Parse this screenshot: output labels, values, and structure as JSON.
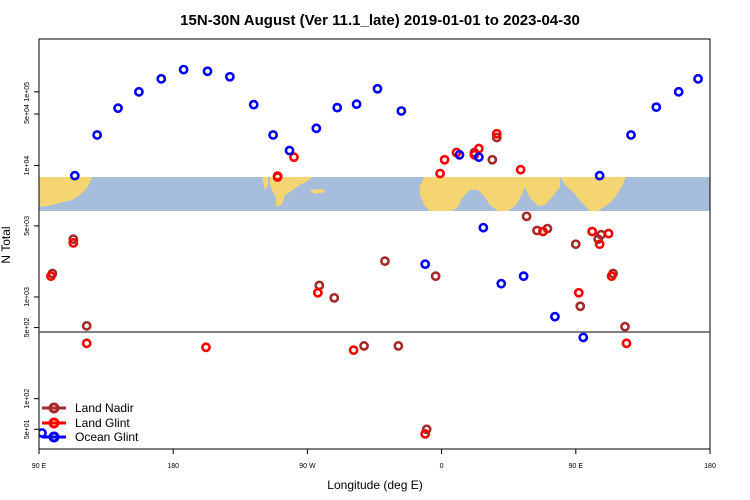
{
  "chart_data": {
    "type": "scatter",
    "title": "15N-30N August (Ver 11.1_late)   2019-01-01 to 2023-04-30",
    "xlabel": "Longitude (deg E)",
    "ylabel": "N Total",
    "x_scale": "linear",
    "y_scale": "log",
    "xlim": [
      90,
      540
    ],
    "ylim": [
      32,
      520000
    ],
    "x_ticks": [
      {
        "value": 90,
        "label": "90 E"
      },
      {
        "value": 180,
        "label": "180"
      },
      {
        "value": 270,
        "label": "90 W"
      },
      {
        "value": 360,
        "label": "0"
      },
      {
        "value": 450,
        "label": "90 E"
      },
      {
        "value": 540,
        "label": "180"
      }
    ],
    "y_ticks_upper": [
      {
        "value": 10000,
        "label": "1e+04"
      },
      {
        "value": 50000,
        "label": "5e+04"
      },
      {
        "value": 100000,
        "label": "1e+05"
      }
    ],
    "y_ticks_lower": [
      {
        "value": 50,
        "label": "5e+01"
      },
      {
        "value": 100,
        "label": "1e+02"
      },
      {
        "value": 500,
        "label": "5e+02"
      },
      {
        "value": 1000,
        "label": "1e+03"
      },
      {
        "value": 5000,
        "label": "5e+03"
      }
    ],
    "reference_line": 500,
    "map_band": {
      "lat_range": [
        15,
        30
      ],
      "land_color": "#f5d472",
      "ocean_color": "#a6bddb"
    },
    "legend": {
      "position": "bottom-left"
    },
    "series": [
      {
        "name": "Land Nadir",
        "color": "#a52a2a",
        "points": [
          [
            99,
            1700
          ],
          [
            113,
            3700
          ],
          [
            122,
            520
          ],
          [
            278,
            1300
          ],
          [
            322,
            2250
          ],
          [
            331,
            330
          ],
          [
            356,
            1600
          ],
          [
            382,
            15000
          ],
          [
            394,
            12000
          ],
          [
            397,
            24000
          ],
          [
            417,
            6200
          ],
          [
            431,
            4700
          ],
          [
            453,
            810
          ],
          [
            465,
            3700
          ],
          [
            475,
            1700
          ],
          [
            483,
            510
          ],
          [
            424,
            4500
          ],
          [
            450,
            3300
          ],
          [
            467,
            4100
          ],
          [
            288,
            980
          ],
          [
            350,
            50
          ],
          [
            308,
            330
          ]
        ]
      },
      {
        "name": "Land Glint",
        "color": "#ff0000",
        "points": [
          [
            98,
            1600
          ],
          [
            113,
            3400
          ],
          [
            122,
            350
          ],
          [
            202,
            320
          ],
          [
            250,
            7000
          ],
          [
            261,
            13000
          ],
          [
            277,
            1100
          ],
          [
            301,
            300
          ],
          [
            349,
            45
          ],
          [
            359,
            7800
          ],
          [
            370,
            15000
          ],
          [
            385,
            17000
          ],
          [
            397,
            27000
          ],
          [
            413,
            8800
          ],
          [
            428,
            4400
          ],
          [
            452,
            1100
          ],
          [
            466,
            3300
          ],
          [
            474,
            1600
          ],
          [
            484,
            350
          ],
          [
            461,
            4400
          ],
          [
            472,
            4200
          ],
          [
            250,
            7200
          ],
          [
            382,
            14000
          ],
          [
            362,
            12000
          ]
        ]
      },
      {
        "name": "Ocean Glint",
        "color": "#0000ff",
        "points": [
          [
            92,
            46
          ],
          [
            114,
            7300
          ],
          [
            129,
            26000
          ],
          [
            143,
            60000
          ],
          [
            157,
            100000
          ],
          [
            172,
            150000
          ],
          [
            187,
            200000
          ],
          [
            203,
            190000
          ],
          [
            218,
            160000
          ],
          [
            234,
            67000
          ],
          [
            247,
            26000
          ],
          [
            258,
            16000
          ],
          [
            276,
            32000
          ],
          [
            290,
            61000
          ],
          [
            303,
            68000
          ],
          [
            317,
            110000
          ],
          [
            333,
            55000
          ],
          [
            349,
            2100
          ],
          [
            372,
            14000
          ],
          [
            388,
            4800
          ],
          [
            400,
            1350
          ],
          [
            436,
            640
          ],
          [
            455,
            400
          ],
          [
            466,
            7300
          ],
          [
            487,
            26000
          ],
          [
            504,
            62000
          ],
          [
            519,
            100000
          ],
          [
            532,
            150000
          ],
          [
            415,
            1600
          ],
          [
            385,
            13000
          ]
        ]
      }
    ]
  }
}
